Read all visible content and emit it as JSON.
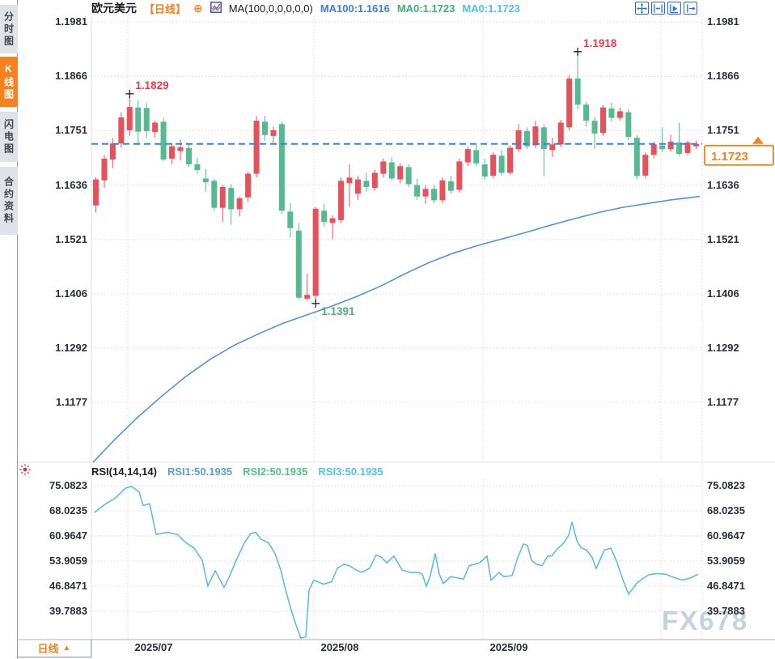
{
  "sidebar": {
    "tabs": [
      {
        "label": "分时图",
        "active": false
      },
      {
        "label": "K线图",
        "active": true
      },
      {
        "label": "闪电图",
        "active": false
      },
      {
        "label": "合约资料",
        "active": false
      }
    ]
  },
  "header": {
    "title": "欧元美元",
    "period_tag": "【日线】",
    "add_icon_glyph": "⊕",
    "ma_settings": "MA(100,0,0,0,0,0)",
    "ma_values": [
      {
        "label": "MA100:1.1616",
        "color": "#3f7de0"
      },
      {
        "label": "MA0:1.1723",
        "color": "#3bb273"
      },
      {
        "label": "MA0:1.1723",
        "color": "#49c4ea"
      }
    ],
    "toolbar_icons": [
      "crosshair-icon",
      "fit-range-icon",
      "play-forward-icon",
      "export-chart-icon"
    ]
  },
  "rsi_header": {
    "settings": "RSI(14,14,14)",
    "values": [
      {
        "label": "RSI1:50.1935",
        "color": "#5b9bd5"
      },
      {
        "label": "RSI2:50.1935",
        "color": "#52c284"
      },
      {
        "label": "RSI3:50.1935",
        "color": "#4fc3e8"
      }
    ]
  },
  "bottom_axis": {
    "period_label": "日线",
    "arrow": "▲"
  },
  "watermark": "FX678",
  "colors": {
    "up": "#e8505a",
    "down": "#56b98f",
    "dashed_line": "#2e86e8",
    "ma_line": "#4f94e0",
    "rsi_line": "#55b8e8",
    "accent_orange": "#f5821f",
    "grid": "#d4d6e0",
    "axis_text": "#2b2e38",
    "annotation_red": "#e23b52",
    "annotation_green": "#4daf7c"
  },
  "chart_data": {
    "type": "candlestick",
    "symbol": "欧元美元",
    "period": "日线",
    "price_axis_labels": [
      "1.1981",
      "1.1866",
      "1.1751",
      "1.1636",
      "1.1521",
      "1.1406",
      "1.1292",
      "1.1177"
    ],
    "x_axis_labels": [
      "2025/07",
      "2025/08",
      "2025/09"
    ],
    "last_price_label": "1.1723",
    "last_price": 1.1723,
    "ma_period": 100,
    "ma_last": 1.1616,
    "candles": [
      [
        1.1593,
        1.1652,
        1.1578,
        1.1648
      ],
      [
        1.1646,
        1.17,
        1.163,
        1.1692
      ],
      [
        1.169,
        1.1735,
        1.1672,
        1.1724
      ],
      [
        1.1724,
        1.179,
        1.1715,
        1.1779
      ],
      [
        1.1752,
        1.1829,
        1.174,
        1.1801
      ],
      [
        1.18,
        1.1815,
        1.172,
        1.1749
      ],
      [
        1.1799,
        1.181,
        1.1735,
        1.175
      ],
      [
        1.1748,
        1.1772,
        1.1736,
        1.1768
      ],
      [
        1.177,
        1.1778,
        1.1686,
        1.169
      ],
      [
        1.1692,
        1.1725,
        1.168,
        1.1718
      ],
      [
        1.1708,
        1.1732,
        1.1688,
        1.1716
      ],
      [
        1.1714,
        1.1722,
        1.1674,
        1.168
      ],
      [
        1.168,
        1.1694,
        1.166,
        1.1668
      ],
      [
        1.165,
        1.167,
        1.1622,
        1.1642
      ],
      [
        1.1645,
        1.165,
        1.1582,
        1.1588
      ],
      [
        1.1588,
        1.1636,
        1.1558,
        1.1632
      ],
      [
        1.163,
        1.1638,
        1.1552,
        1.1585
      ],
      [
        1.1585,
        1.1612,
        1.157,
        1.1608
      ],
      [
        1.161,
        1.1665,
        1.16,
        1.166
      ],
      [
        1.166,
        1.1782,
        1.1652,
        1.1772
      ],
      [
        1.177,
        1.1782,
        1.173,
        1.1742
      ],
      [
        1.174,
        1.176,
        1.1726,
        1.1752
      ],
      [
        1.1765,
        1.177,
        1.1575,
        1.1582
      ],
      [
        1.158,
        1.1598,
        1.1525,
        1.1545
      ],
      [
        1.154,
        1.1556,
        1.1394,
        1.1398
      ],
      [
        1.1396,
        1.1449,
        1.1392,
        1.1404
      ],
      [
        1.1402,
        1.159,
        1.1391,
        1.1586
      ],
      [
        1.1582,
        1.1596,
        1.1548,
        1.1558
      ],
      [
        1.1556,
        1.1572,
        1.1522,
        1.1566
      ],
      [
        1.1562,
        1.1652,
        1.1556,
        1.1645
      ],
      [
        1.164,
        1.168,
        1.159,
        1.1652
      ],
      [
        1.1618,
        1.1655,
        1.1605,
        1.1648
      ],
      [
        1.1645,
        1.1662,
        1.1622,
        1.1632
      ],
      [
        1.163,
        1.1668,
        1.1624,
        1.1662
      ],
      [
        1.166,
        1.1692,
        1.1652,
        1.1686
      ],
      [
        1.1684,
        1.1695,
        1.1645,
        1.165
      ],
      [
        1.1648,
        1.1682,
        1.164,
        1.1676
      ],
      [
        1.1674,
        1.168,
        1.1632,
        1.1638
      ],
      [
        1.1636,
        1.165,
        1.1605,
        1.1612
      ],
      [
        1.1612,
        1.1635,
        1.1596,
        1.1628
      ],
      [
        1.1628,
        1.1636,
        1.1598,
        1.1604
      ],
      [
        1.1604,
        1.1652,
        1.1598,
        1.1646
      ],
      [
        1.1644,
        1.1656,
        1.1618,
        1.1624
      ],
      [
        1.1626,
        1.1692,
        1.162,
        1.1686
      ],
      [
        1.1684,
        1.1718,
        1.1676,
        1.1712
      ],
      [
        1.171,
        1.1722,
        1.1676,
        1.1682
      ],
      [
        1.168,
        1.1692,
        1.1648,
        1.1654
      ],
      [
        1.1656,
        1.1705,
        1.165,
        1.17
      ],
      [
        1.1698,
        1.171,
        1.1656,
        1.1662
      ],
      [
        1.1662,
        1.172,
        1.1658,
        1.1715
      ],
      [
        1.1712,
        1.1765,
        1.1706,
        1.1752
      ],
      [
        1.175,
        1.1758,
        1.1712,
        1.1718
      ],
      [
        1.172,
        1.1772,
        1.1714,
        1.176
      ],
      [
        1.1758,
        1.1764,
        1.1655,
        1.1712
      ],
      [
        1.171,
        1.1736,
        1.1696,
        1.1722
      ],
      [
        1.1722,
        1.1774,
        1.1716,
        1.1768
      ],
      [
        1.1758,
        1.1868,
        1.1752,
        1.1861
      ],
      [
        1.1861,
        1.1918,
        1.1796,
        1.1806
      ],
      [
        1.1806,
        1.1812,
        1.176,
        1.1772
      ],
      [
        1.1772,
        1.178,
        1.1712,
        1.1745
      ],
      [
        1.1746,
        1.1805,
        1.174,
        1.18
      ],
      [
        1.1798,
        1.181,
        1.177,
        1.1778
      ],
      [
        1.1778,
        1.18,
        1.1772,
        1.1792
      ],
      [
        1.179,
        1.1796,
        1.1732,
        1.1738
      ],
      [
        1.1736,
        1.1742,
        1.1648,
        1.1655
      ],
      [
        1.1656,
        1.1705,
        1.165,
        1.17
      ],
      [
        1.17,
        1.1728,
        1.1692,
        1.1722
      ],
      [
        1.172,
        1.1758,
        1.1706,
        1.1712
      ],
      [
        1.1712,
        1.1742,
        1.1706,
        1.1728
      ],
      [
        1.1726,
        1.1768,
        1.1698,
        1.1702
      ],
      [
        1.1704,
        1.173,
        1.17,
        1.1726
      ],
      [
        1.1718,
        1.173,
        1.1712,
        1.1723
      ]
    ],
    "ma_line": [
      [
        115,
        1.105
      ],
      [
        140,
        1.1095
      ],
      [
        170,
        1.1145
      ],
      [
        200,
        1.119
      ],
      [
        230,
        1.1232
      ],
      [
        260,
        1.1268
      ],
      [
        290,
        1.1298
      ],
      [
        320,
        1.1322
      ],
      [
        350,
        1.1344
      ],
      [
        380,
        1.1362
      ],
      [
        410,
        1.138
      ],
      [
        440,
        1.14
      ],
      [
        470,
        1.1422
      ],
      [
        500,
        1.1448
      ],
      [
        530,
        1.1472
      ],
      [
        560,
        1.1492
      ],
      [
        590,
        1.1508
      ],
      [
        620,
        1.1522
      ],
      [
        650,
        1.1536
      ],
      [
        680,
        1.1551
      ],
      [
        710,
        1.1565
      ],
      [
        740,
        1.1578
      ],
      [
        770,
        1.1589
      ],
      [
        800,
        1.1597
      ],
      [
        830,
        1.1605
      ],
      [
        865,
        1.1612
      ]
    ],
    "annotations": [
      {
        "text": "1.1829",
        "price": 1.1829,
        "candle_index": 4,
        "color": "#e23b52",
        "placement": "above"
      },
      {
        "text": "1.1391",
        "price": 1.1391,
        "candle_index": 26,
        "color": "#4daf7c",
        "placement": "below"
      },
      {
        "text": "1.1918",
        "price": 1.1918,
        "candle_index": 57,
        "color": "#e23b52",
        "placement": "above"
      }
    ],
    "rsi": {
      "axis_labels": [
        "75.0823",
        "68.0235",
        "60.9647",
        "53.9059",
        "46.8471",
        "39.7883"
      ],
      "last": 50.1935,
      "points": [
        [
          117,
          67.6
        ],
        [
          130,
          69.9
        ],
        [
          143,
          71.7
        ],
        [
          155,
          74.4
        ],
        [
          163,
          74.9
        ],
        [
          172,
          73.3
        ],
        [
          177,
          69.5
        ],
        [
          185,
          70.0
        ],
        [
          193,
          61.4
        ],
        [
          207,
          62.0
        ],
        [
          220,
          61.3
        ],
        [
          228,
          59.4
        ],
        [
          240,
          57.5
        ],
        [
          250,
          54.1
        ],
        [
          257,
          46.9
        ],
        [
          266,
          51.2
        ],
        [
          277,
          46.5
        ],
        [
          283,
          49.2
        ],
        [
          292,
          54.1
        ],
        [
          302,
          59.0
        ],
        [
          310,
          61.6
        ],
        [
          316,
          62.0
        ],
        [
          323,
          60.0
        ],
        [
          332,
          59.0
        ],
        [
          340,
          56.0
        ],
        [
          347,
          51.4
        ],
        [
          353,
          45.8
        ],
        [
          360,
          40.1
        ],
        [
          367,
          35.2
        ],
        [
          372,
          32.2
        ],
        [
          378,
          32.6
        ],
        [
          382,
          45.8
        ],
        [
          388,
          48.5
        ],
        [
          400,
          47.4
        ],
        [
          410,
          48.1
        ],
        [
          417,
          51.9
        ],
        [
          425,
          53.0
        ],
        [
          432,
          52.6
        ],
        [
          440,
          51.4
        ],
        [
          447,
          50.7
        ],
        [
          457,
          51.9
        ],
        [
          465,
          55.6
        ],
        [
          472,
          54.9
        ],
        [
          478,
          53.4
        ],
        [
          487,
          55.3
        ],
        [
          497,
          51.4
        ],
        [
          507,
          50.7
        ],
        [
          517,
          50.7
        ],
        [
          522,
          50.2
        ],
        [
          527,
          46.8
        ],
        [
          532,
          49.8
        ],
        [
          538,
          56.0
        ],
        [
          543,
          50.2
        ],
        [
          548,
          47.6
        ],
        [
          557,
          49.5
        ],
        [
          565,
          49.2
        ],
        [
          573,
          48.8
        ],
        [
          580,
          52.6
        ],
        [
          587,
          53.0
        ],
        [
          593,
          53.4
        ],
        [
          602,
          55.3
        ],
        [
          607,
          48.5
        ],
        [
          617,
          50.7
        ],
        [
          623,
          49.5
        ],
        [
          633,
          49.8
        ],
        [
          640,
          54.9
        ],
        [
          647,
          58.7
        ],
        [
          652,
          58.3
        ],
        [
          657,
          54.1
        ],
        [
          663,
          53.0
        ],
        [
          670,
          52.6
        ],
        [
          677,
          55.3
        ],
        [
          682,
          55.3
        ],
        [
          688,
          57.1
        ],
        [
          697,
          59.0
        ],
        [
          703,
          61.2
        ],
        [
          707,
          64.9
        ],
        [
          713,
          59.7
        ],
        [
          718,
          57.7
        ],
        [
          725,
          57.0
        ],
        [
          732,
          54.9
        ],
        [
          737,
          51.8
        ],
        [
          747,
          57.0
        ],
        [
          755,
          57.5
        ],
        [
          762,
          54.0
        ],
        [
          770,
          48.6
        ],
        [
          777,
          44.6
        ],
        [
          787,
          47.6
        ],
        [
          795,
          49.1
        ],
        [
          803,
          50.1
        ],
        [
          813,
          50.4
        ],
        [
          823,
          50.2
        ],
        [
          833,
          49.3
        ],
        [
          843,
          48.6
        ],
        [
          853,
          49.1
        ],
        [
          863,
          50.2
        ]
      ]
    }
  }
}
